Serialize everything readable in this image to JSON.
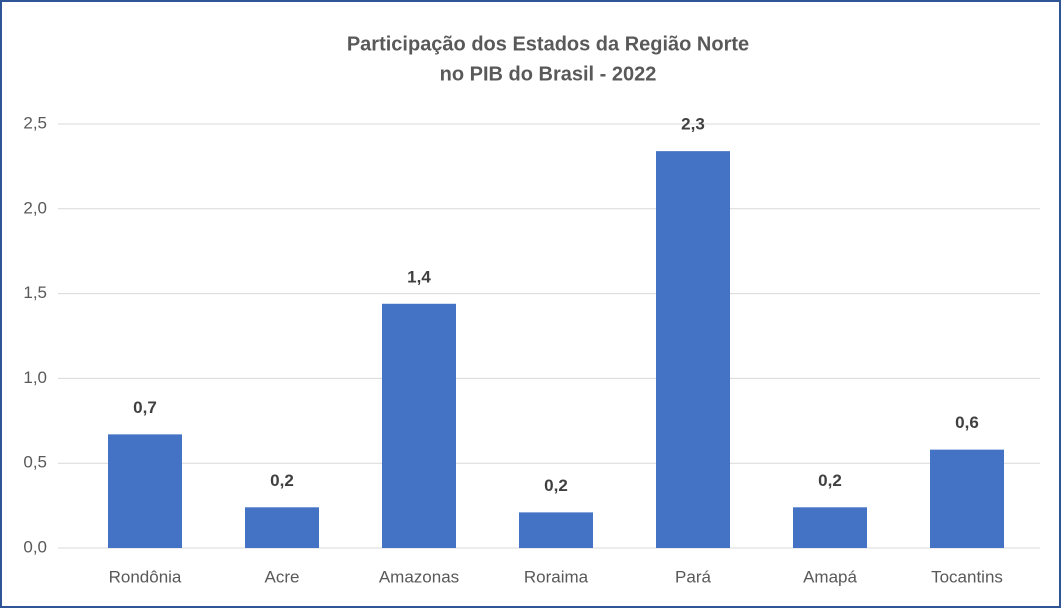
{
  "chart_data": {
    "type": "bar",
    "title": [
      "Participação dos Estados da Região Norte",
      "no PIB do Brasil - 2022"
    ],
    "categories": [
      "Rondônia",
      "Acre",
      "Amazonas",
      "Roraima",
      "Pará",
      "Amapá",
      "Tocantins"
    ],
    "values": [
      0.67,
      0.24,
      1.44,
      0.21,
      2.34,
      0.24,
      0.58
    ],
    "value_labels": [
      "0,7",
      "0,2",
      "1,4",
      "0,2",
      "2,3",
      "0,2",
      "0,6"
    ],
    "color": "#4472c4",
    "ylim": [
      0,
      2.5
    ],
    "yticks": [
      {
        "value": 0,
        "label": "0,0"
      },
      {
        "value": 0.5,
        "label": "0,5"
      },
      {
        "value": 1,
        "label": "1,0"
      },
      {
        "value": 1.5,
        "label": "1,5"
      },
      {
        "value": 2,
        "label": "2,0"
      },
      {
        "value": 2.5,
        "label": "2,5"
      }
    ],
    "grid": true
  }
}
